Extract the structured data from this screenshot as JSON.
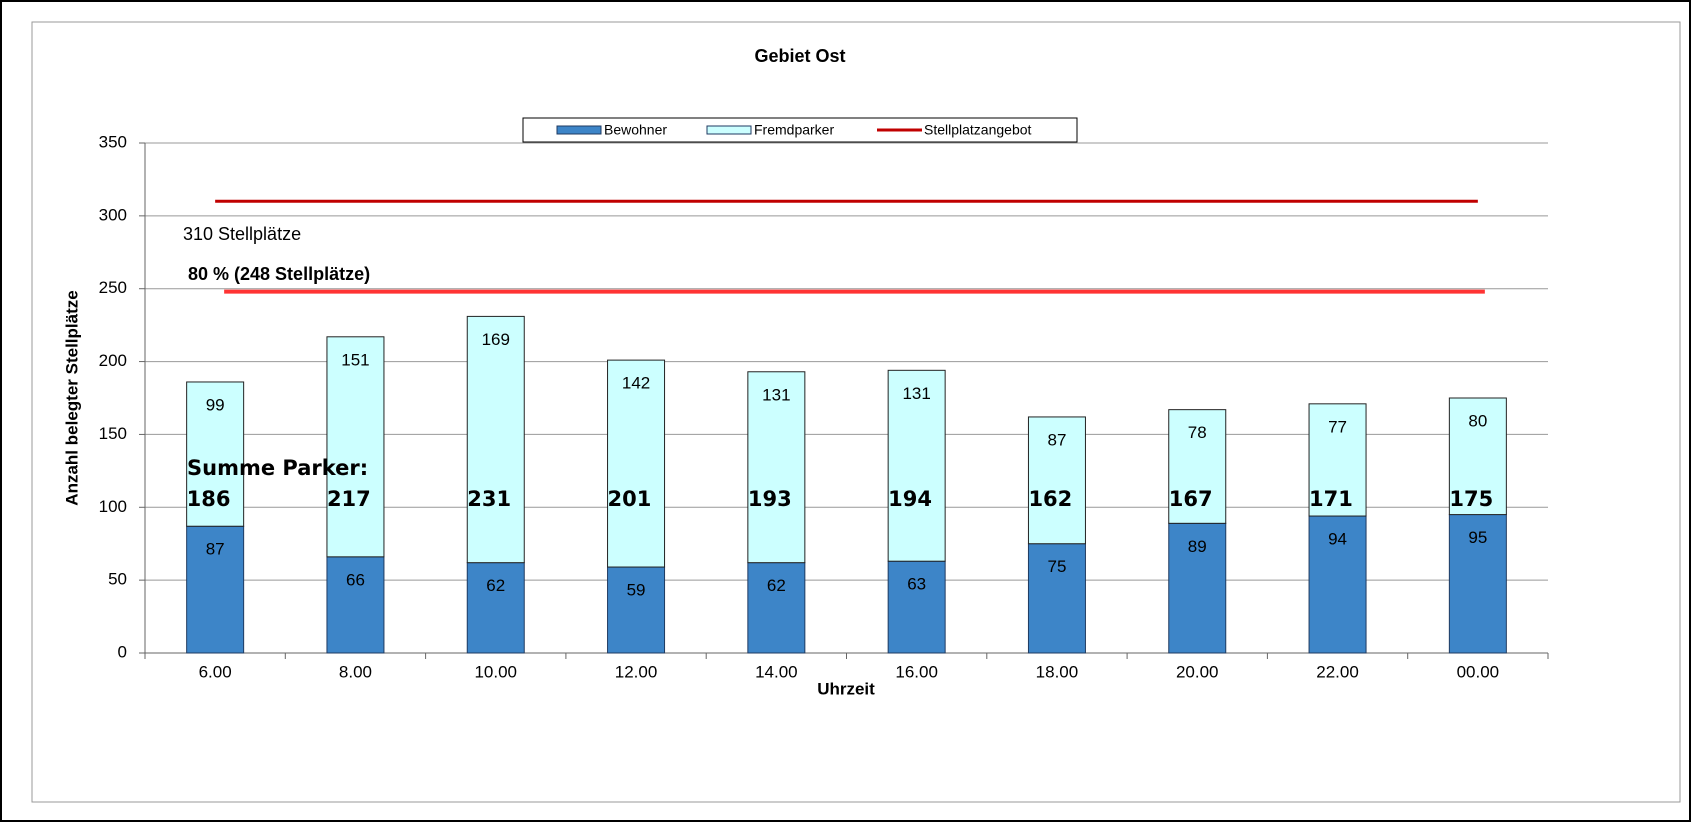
{
  "chart_data": {
    "type": "bar",
    "stacked": true,
    "title": "Gebiet Ost",
    "x_label": "Uhrzeit",
    "y_label": "Anzahl belegter Stellplätze",
    "categories": [
      "6.00",
      "8.00",
      "10.00",
      "12.00",
      "14.00",
      "16.00",
      "18.00",
      "20.00",
      "22.00",
      "00.00"
    ],
    "series": [
      {
        "name": "Bewohner",
        "color": "#3d85c8",
        "values": [
          87,
          66,
          62,
          59,
          62,
          63,
          75,
          89,
          94,
          95
        ]
      },
      {
        "name": "Fremdparker",
        "color": "#ccffff",
        "values": [
          99,
          151,
          169,
          142,
          131,
          131,
          87,
          78,
          77,
          80
        ]
      },
      {
        "name": "Stellplatzangebot",
        "type": "line",
        "color": "#c00000",
        "values": [
          310,
          310,
          310,
          310,
          310,
          310,
          310,
          310,
          310,
          310
        ]
      }
    ],
    "totals_label": "Summe Parker:",
    "totals": [
      186,
      217,
      231,
      201,
      193,
      194,
      162,
      167,
      171,
      175
    ],
    "reference_line": {
      "value": 248,
      "color": "#ff3333"
    },
    "annotations": [
      "310 Stellplätze",
      "80 %  (248 Stellplätze)"
    ],
    "ylim": [
      0,
      350
    ],
    "yticks": [
      0,
      50,
      100,
      150,
      200,
      250,
      300,
      350
    ],
    "grid": true
  }
}
